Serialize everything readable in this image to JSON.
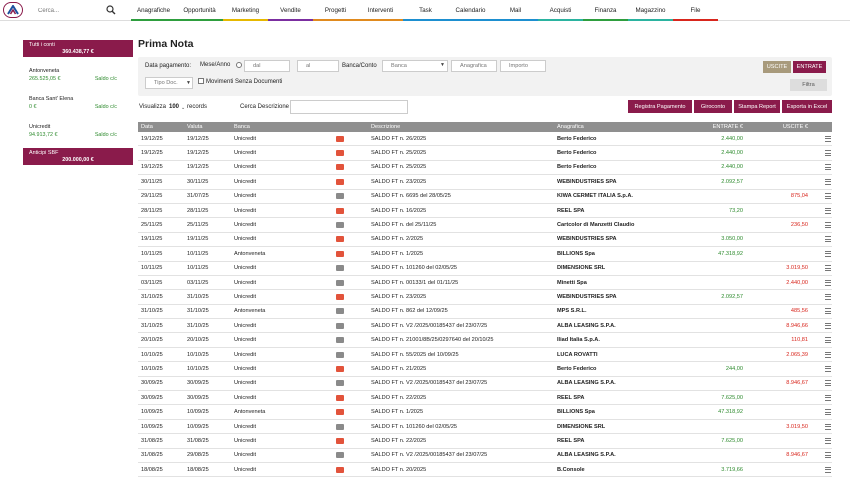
{
  "search": {
    "placeholder": "Cerca..."
  },
  "nav": [
    {
      "label": "Anagrafiche",
      "color": "#2e9e3e",
      "w": 45
    },
    {
      "label": "Opportunità",
      "color": "#2e9e3e",
      "w": 47
    },
    {
      "label": "Marketing",
      "color": "#e6b800",
      "w": 45
    },
    {
      "label": "Vendite",
      "color": "#7b2ea0",
      "w": 45
    },
    {
      "label": "Progetti",
      "color": "#e08a1e",
      "w": 45
    },
    {
      "label": "Interventi",
      "color": "#e08a1e",
      "w": 45
    },
    {
      "label": "Task",
      "color": "#1d8fd0",
      "w": 45
    },
    {
      "label": "Calendario",
      "color": "#1d8fd0",
      "w": 45
    },
    {
      "label": "Mail",
      "color": "#1d8fd0",
      "w": 45
    },
    {
      "label": "Acquisti",
      "color": "#2bb3a0",
      "w": 45
    },
    {
      "label": "Finanza",
      "color": "#2e9e3e",
      "w": 45
    },
    {
      "label": "Magazzino",
      "color": "#2bb3a0",
      "w": 45
    },
    {
      "label": "File",
      "color": "#d8261d",
      "w": 45
    }
  ],
  "sidebar": {
    "total": {
      "title": "Tutti i conti",
      "amount": "360.438,77 €"
    },
    "banks": [
      {
        "name": "Antonveneta",
        "amount": "265.525,05 €",
        "label": "Saldo c/c"
      },
      {
        "name": "Banca Sant' Elena",
        "amount": "0 €",
        "label": "Saldo c/c"
      },
      {
        "name": "Unicredit",
        "amount": "94.913,72 €",
        "label": "Saldo c/c"
      }
    ],
    "sbf": {
      "title": "Anticipi SBF",
      "amount": "200.000,00 €"
    }
  },
  "page": {
    "title": "Prima Nota"
  },
  "filters": {
    "data_pagamento": "Data pagamento:",
    "mese_anno": "Mese/Anno",
    "dal": "dal",
    "al": "al",
    "banca_conto": "Banca/Conto",
    "banca": "Banca",
    "anagrafica": "Anagrafica",
    "importo": "Importo",
    "tipo_doc": "Tipo Doc.",
    "movimenti": "Movimenti Senza Documenti",
    "uscite_btn": "USCITE",
    "entrate_btn": "ENTRATE",
    "filtra_btn": "Filtra"
  },
  "toolbar": {
    "visualizza": "Visualizza",
    "records_value": "100",
    "records": "records",
    "cerca_descrizione": "Cerca Descrizione",
    "registra": "Registra Pagamento",
    "giroconto": "Giroconto",
    "stampa": "Stampa Report",
    "esporta": "Esporta in Excel"
  },
  "table": {
    "headers": {
      "data": "Data",
      "valuta": "Valuta",
      "banca": "Banca",
      "descrizione": "Descrizione",
      "anagrafica": "Anagrafica",
      "entrate": "ENTRATE €",
      "uscite": "USCITE €"
    },
    "flag_colors": {
      "red": "#e2533b",
      "gray": "#8a8a8a"
    },
    "rows": [
      {
        "data": "19/12/25",
        "valuta": "19/12/25",
        "banca": "Unicredit",
        "flag": "red",
        "descrizione": "SALDO FT n. 26/2025",
        "anagrafica": "Berto Federico",
        "entrate": "2.440,00",
        "uscite": ""
      },
      {
        "data": "19/12/25",
        "valuta": "19/12/25",
        "banca": "Unicredit",
        "flag": "red",
        "descrizione": "SALDO FT n. 25/2025",
        "anagrafica": "Berto Federico",
        "entrate": "2.440,00",
        "uscite": ""
      },
      {
        "data": "19/12/25",
        "valuta": "19/12/25",
        "banca": "Unicredit",
        "flag": "red",
        "descrizione": "SALDO FT n. 25/2025",
        "anagrafica": "Berto Federico",
        "entrate": "2.440,00",
        "uscite": ""
      },
      {
        "data": "30/11/25",
        "valuta": "30/11/25",
        "banca": "Unicredit",
        "flag": "red",
        "descrizione": "SALDO FT n. 23/2025",
        "anagrafica": "WEBINDUSTRIES SPA",
        "entrate": "2.092,57",
        "uscite": ""
      },
      {
        "data": "29/11/25",
        "valuta": "31/07/25",
        "banca": "Unicredit",
        "flag": "gray",
        "descrizione": "SALDO FT n. 6695 del 28/05/25",
        "anagrafica": "KIWA CERMET ITALIA S.p.A.",
        "entrate": "",
        "uscite": "875,04"
      },
      {
        "data": "28/11/25",
        "valuta": "28/11/25",
        "banca": "Unicredit",
        "flag": "red",
        "descrizione": "SALDO FT n. 16/2025",
        "anagrafica": "REEL SPA",
        "entrate": "73,20",
        "uscite": ""
      },
      {
        "data": "25/11/25",
        "valuta": "25/11/25",
        "banca": "Unicredit",
        "flag": "gray",
        "descrizione": "SALDO FT n. del 25/11/25",
        "anagrafica": "Cartcolor di Manzetti Claudio",
        "entrate": "",
        "uscite": "236,50"
      },
      {
        "data": "19/11/25",
        "valuta": "19/11/25",
        "banca": "Unicredit",
        "flag": "red",
        "descrizione": "SALDO FT n. 2/2025",
        "anagrafica": "WEBINDUSTRIES SPA",
        "entrate": "3.050,00",
        "uscite": ""
      },
      {
        "data": "10/11/25",
        "valuta": "10/11/25",
        "banca": "Antonveneta",
        "flag": "red",
        "descrizione": "SALDO FT n. 1/2025",
        "anagrafica": "BILLIONS Spa",
        "entrate": "47.318,92",
        "uscite": ""
      },
      {
        "data": "10/11/25",
        "valuta": "10/11/25",
        "banca": "Unicredit",
        "flag": "gray",
        "descrizione": "SALDO FT n. 101260 del 02/05/25",
        "anagrafica": "DIMENSIONE SRL",
        "entrate": "",
        "uscite": "3.019,50"
      },
      {
        "data": "03/11/25",
        "valuta": "03/11/25",
        "banca": "Unicredit",
        "flag": "gray",
        "descrizione": "SALDO FT n. 00133/1 del 01/11/25",
        "anagrafica": "Minetti Spa",
        "entrate": "",
        "uscite": "2.440,00"
      },
      {
        "data": "31/10/25",
        "valuta": "31/10/25",
        "banca": "Unicredit",
        "flag": "red",
        "descrizione": "SALDO FT n. 23/2025",
        "anagrafica": "WEBINDUSTRIES SPA",
        "entrate": "2.092,57",
        "uscite": ""
      },
      {
        "data": "31/10/25",
        "valuta": "31/10/25",
        "banca": "Antonveneta",
        "flag": "gray",
        "descrizione": "SALDO FT n. 862 del 12/09/25",
        "anagrafica": "MPS S.R.L.",
        "entrate": "",
        "uscite": "485,56"
      },
      {
        "data": "31/10/25",
        "valuta": "31/10/25",
        "banca": "Unicredit",
        "flag": "gray",
        "descrizione": "SALDO FT n. V2 /2025/00185437 del 23/07/25",
        "anagrafica": "ALBA LEASING S.P.A.",
        "entrate": "",
        "uscite": "8.946,66"
      },
      {
        "data": "20/10/25",
        "valuta": "20/10/25",
        "banca": "Unicredit",
        "flag": "gray",
        "descrizione": "SALDO FT n. 21001/8B/25/0297640 del 20/10/25",
        "anagrafica": "Iliad Italia S.p.A.",
        "entrate": "",
        "uscite": "110,81"
      },
      {
        "data": "10/10/25",
        "valuta": "10/10/25",
        "banca": "Unicredit",
        "flag": "gray",
        "descrizione": "SALDO FT n. 55/2025 del 10/09/25",
        "anagrafica": "LUCA ROVATTI",
        "entrate": "",
        "uscite": "2.065,39"
      },
      {
        "data": "10/10/25",
        "valuta": "10/10/25",
        "banca": "Unicredit",
        "flag": "red",
        "descrizione": "SALDO FT n. 21/2025",
        "anagrafica": "Berto Federico",
        "entrate": "244,00",
        "uscite": ""
      },
      {
        "data": "30/09/25",
        "valuta": "30/09/25",
        "banca": "Unicredit",
        "flag": "gray",
        "descrizione": "SALDO FT n. V2 /2025/00185437 del 23/07/25",
        "anagrafica": "ALBA LEASING S.P.A.",
        "entrate": "",
        "uscite": "8.946,67"
      },
      {
        "data": "30/09/25",
        "valuta": "30/09/25",
        "banca": "Unicredit",
        "flag": "red",
        "descrizione": "SALDO FT n. 22/2025",
        "anagrafica": "REEL SPA",
        "entrate": "7.625,00",
        "uscite": ""
      },
      {
        "data": "10/09/25",
        "valuta": "10/09/25",
        "banca": "Antonveneta",
        "flag": "red",
        "descrizione": "SALDO FT n. 1/2025",
        "anagrafica": "BILLIONS Spa",
        "entrate": "47.318,92",
        "uscite": ""
      },
      {
        "data": "10/09/25",
        "valuta": "10/09/25",
        "banca": "Unicredit",
        "flag": "gray",
        "descrizione": "SALDO FT n. 101260 del 02/05/25",
        "anagrafica": "DIMENSIONE SRL",
        "entrate": "",
        "uscite": "3.019,50"
      },
      {
        "data": "31/08/25",
        "valuta": "31/08/25",
        "banca": "Unicredit",
        "flag": "red",
        "descrizione": "SALDO FT n. 22/2025",
        "anagrafica": "REEL SPA",
        "entrate": "7.625,00",
        "uscite": ""
      },
      {
        "data": "31/08/25",
        "valuta": "29/08/25",
        "banca": "Unicredit",
        "flag": "gray",
        "descrizione": "SALDO FT n. V2 /2025/00185437 del 23/07/25",
        "anagrafica": "ALBA LEASING S.P.A.",
        "entrate": "",
        "uscite": "8.946,67"
      },
      {
        "data": "18/08/25",
        "valuta": "18/08/25",
        "banca": "Unicredit",
        "flag": "red",
        "descrizione": "SALDO FT n. 20/2025",
        "anagrafica": "B.Console",
        "entrate": "3.719,66",
        "uscite": ""
      }
    ]
  }
}
